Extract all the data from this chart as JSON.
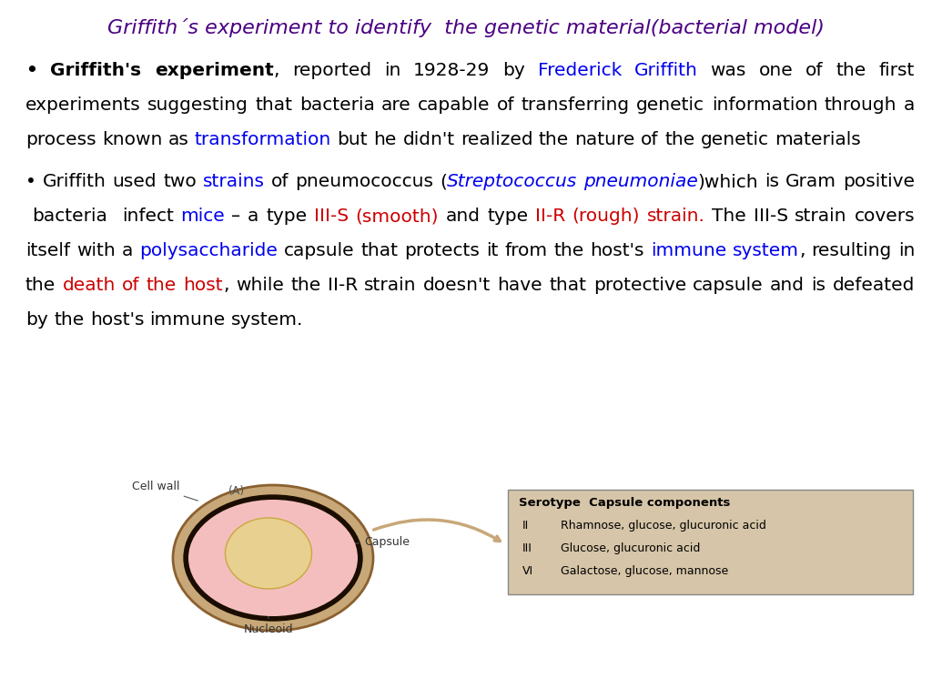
{
  "title": "Griffith´s experiment to identify  the genetic material(bacterial model)",
  "title_color": "#4B0082",
  "bg_color": "#ffffff",
  "outer_ellipse_color": "#C4A070",
  "inner_ellipse_color": "#F5C0C0",
  "nucleoid_color": "#E8D090",
  "cell_wall_ring_color": "#1a0d00",
  "table_bg": "#D6C5A8",
  "diagram_label_A": "(A)",
  "cell_wall_label": "Cell wall",
  "capsule_label": "Capsule",
  "nucleoid_label": "Nucleoid",
  "table_header": "Serotype  Capsule components",
  "table_rows": [
    [
      "II",
      "Rhamnose, glucose, glucuronic acid"
    ],
    [
      "III",
      "Glucose, glucuronic acid"
    ],
    [
      "VI",
      "Galactose, glucose, mannose"
    ]
  ]
}
